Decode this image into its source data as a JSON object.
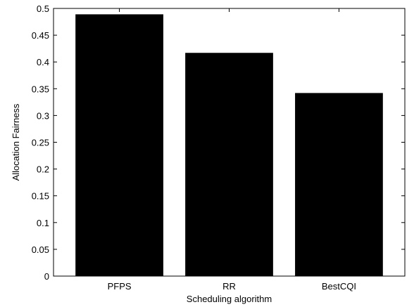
{
  "chart_data": {
    "type": "bar",
    "categories": [
      "PFPS",
      "RR",
      "BestCQI"
    ],
    "values": [
      0.489,
      0.417,
      0.342
    ],
    "xlabel": "Scheduling algorithm",
    "ylabel": "Allocation Fairness",
    "ylim": [
      0,
      0.5
    ],
    "yticks": [
      0,
      0.05,
      0.1,
      0.15,
      0.2,
      0.25,
      0.3,
      0.35,
      0.4,
      0.45,
      0.5
    ],
    "ytick_labels": [
      "0",
      "0.05",
      "0.1",
      "0.15",
      "0.2",
      "0.25",
      "0.3",
      "0.35",
      "0.4",
      "0.45",
      "0.5"
    ],
    "grid": false,
    "bar_color": "#000000"
  }
}
